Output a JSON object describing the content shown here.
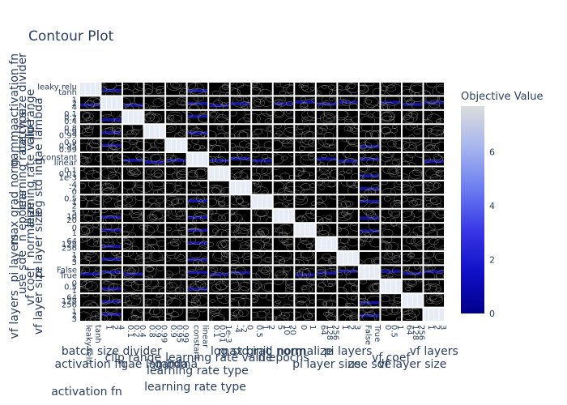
{
  "chart_data": {
    "type": "heatmap",
    "title": "Contour Plot",
    "parameters": [
      "activation fn",
      "batch size divider",
      "clip range",
      "gae lambda",
      "gamma",
      "learning rate type",
      "learning rate value",
      "log std init",
      "max grad norm",
      "n epochs",
      "normalize",
      "pi layer size",
      "pi layers",
      "use sde",
      "vf coef",
      "vf layer size",
      "vf layers"
    ],
    "left_row_labels": [
      "activation fn",
      "batch size divider",
      "clip range",
      "gae lambda",
      "gamma",
      "learning rate type",
      "learning rate value",
      "log std init",
      "max grad norm",
      "n epochs",
      "normalize",
      "pi layer size",
      "pi layers",
      "use sde",
      "vf coef",
      "vf layer size",
      "vf layers"
    ],
    "bottom_labels": [
      {
        "text": "activation fn",
        "row": 2
      },
      {
        "text": "batch size divider",
        "row": 0
      },
      {
        "text": "clip range",
        "row": 1
      },
      {
        "text": "gae lambda",
        "row": 2
      },
      {
        "text": "gamma",
        "row": 2
      },
      {
        "text": "learning rate type",
        "row": 3
      },
      {
        "text": "learning rate value",
        "row": 1
      },
      {
        "text": "log std init",
        "row": 0
      },
      {
        "text": "max grad norm",
        "row": 0
      },
      {
        "text": "n epochs",
        "row": 1
      },
      {
        "text": "normalize",
        "row": 0
      },
      {
        "text": "pi layer size",
        "row": 2
      },
      {
        "text": "pi layers",
        "row": 0
      },
      {
        "text": "use sde",
        "row": 2
      },
      {
        "text": "vf coef",
        "row": 1
      },
      {
        "text": "vf layer size",
        "row": 2
      },
      {
        "text": "vf layers",
        "row": 0
      }
    ],
    "x_ticks": [
      [
        "leaky relu",
        "tanh"
      ],
      [
        "1",
        "2",
        "4"
      ],
      [
        "0.1",
        "0.2",
        "0.4"
      ],
      [
        "0.8",
        "0.9",
        "0.99"
      ],
      [
        "0.9",
        "0.95",
        "0.99"
      ],
      [
        "constant",
        "linear"
      ],
      [
        "0.1",
        "0.01",
        "1e-3"
      ],
      [
        "-4",
        "-2",
        "0"
      ],
      [
        "0.5",
        "1",
        "2"
      ],
      [
        "5",
        "10",
        "20"
      ],
      [
        "0",
        "1"
      ],
      [
        "64",
        "128",
        "256"
      ],
      [
        "1",
        "2",
        "3"
      ],
      [
        "False",
        "True"
      ],
      [
        "0",
        "0.5",
        "1"
      ],
      [
        "64",
        "128",
        "256"
      ],
      [
        "1",
        "2",
        "3"
      ]
    ],
    "y_ticks": [
      [
        "leaky relu",
        "tanh"
      ],
      [
        "1",
        "2",
        "4"
      ],
      [
        "0.1",
        "0.2",
        "0.4"
      ],
      [
        "0.8",
        "0.9",
        "0.99"
      ],
      [
        "0.9",
        "0.95",
        "0.99"
      ],
      [
        "constant",
        "linear"
      ],
      [
        "0.1",
        "0.01",
        "1e-3"
      ],
      [
        "-4",
        "-2",
        "0"
      ],
      [
        "0.5",
        "1",
        "2"
      ],
      [
        "5",
        "10",
        "20"
      ],
      [
        "0",
        "1"
      ],
      [
        "64",
        "128",
        "256"
      ],
      [
        "1",
        "2",
        "3"
      ],
      [
        "False",
        "True"
      ],
      [
        "0",
        "0.5",
        "1"
      ],
      [
        "64",
        "128",
        "256"
      ],
      [
        "1",
        "2",
        "3"
      ]
    ],
    "colorbar": {
      "title": "Objective Value",
      "range": [
        0,
        7.7
      ],
      "ticks": [
        0,
        2,
        4,
        6
      ],
      "colors": [
        "#00008b",
        "#1010c8",
        "#3838e6",
        "#6b7df0",
        "#a6b5ee",
        "#dcdcdc"
      ]
    },
    "panel_style": {
      "background": "#000000",
      "line_color": "#888888",
      "grid_color": "#ffffff"
    }
  }
}
